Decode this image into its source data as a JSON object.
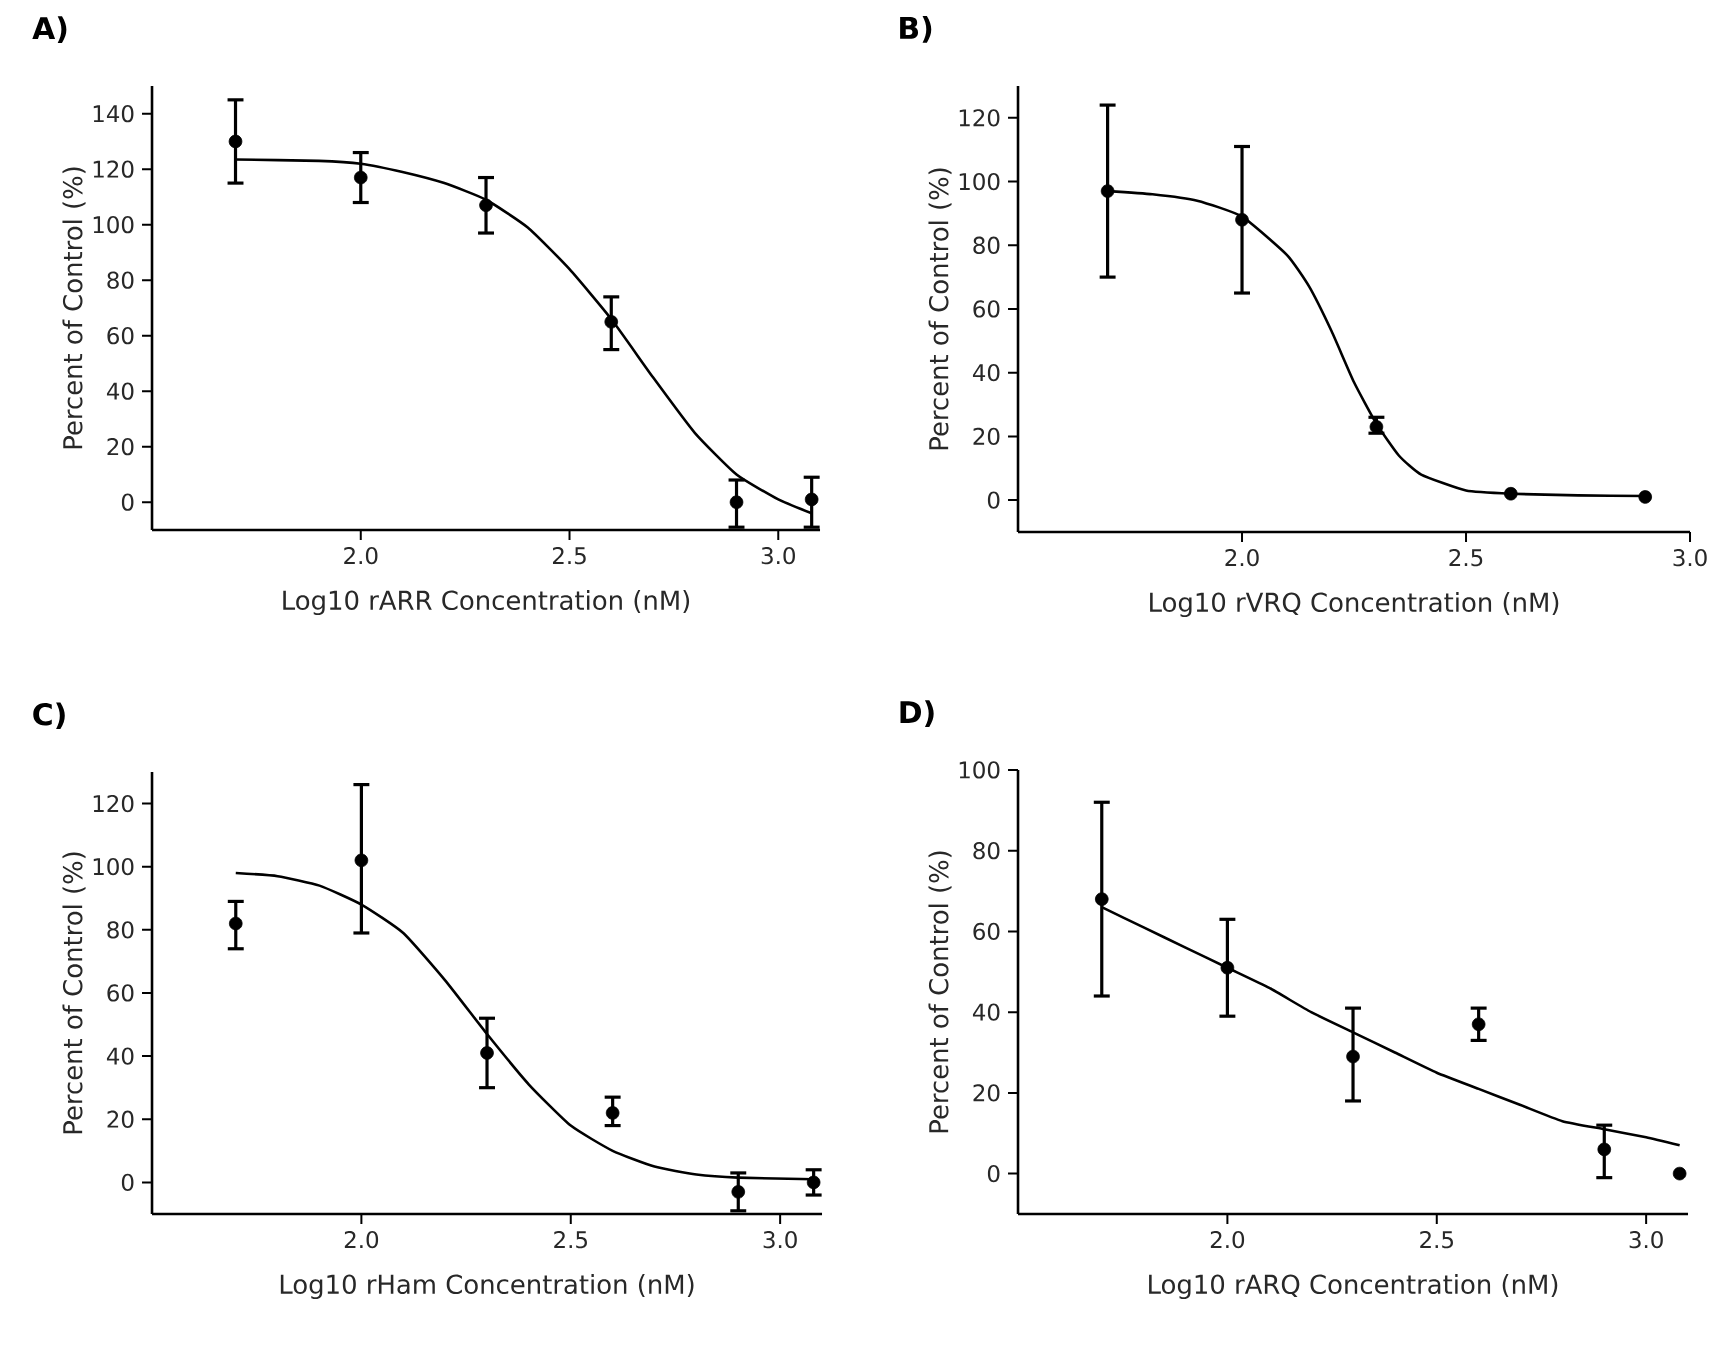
{
  "chart_data": [
    {
      "type": "scatter",
      "title": "A)",
      "xlabel": "Log10 rARR Concentration (nM)",
      "ylabel": "Percent of Control (%)",
      "xlim": [
        1.5,
        3.1
      ],
      "ylim": [
        -10,
        150
      ],
      "xticks": [
        {
          "value": 2,
          "label": "2.0"
        },
        {
          "value": 2.5,
          "label": "2.5"
        },
        {
          "value": 3,
          "label": "3.0"
        }
      ],
      "yticks": [
        0,
        20,
        40,
        60,
        80,
        100,
        120,
        140
      ],
      "grid": false,
      "series": [
        {
          "type": "scatter",
          "color": "#000000",
          "marker": "circle",
          "x": [
            1.7,
            2.0,
            2.3,
            2.6,
            2.9,
            3.08
          ],
          "values": [
            130,
            117,
            107,
            65,
            0,
            1
          ],
          "errors": [
            [
              115,
              145
            ],
            [
              108,
              126
            ],
            [
              97,
              117
            ],
            [
              55,
              74
            ],
            [
              -9,
              8
            ],
            [
              -9,
              9
            ]
          ]
        },
        {
          "type": "line",
          "color": "#000000",
          "marker": "none",
          "line_style": "solid",
          "x": [
            1.7,
            1.9,
            2.0,
            2.1,
            2.2,
            2.3,
            2.4,
            2.5,
            2.6,
            2.7,
            2.8,
            2.9,
            3.0,
            3.08
          ],
          "values": [
            123.5,
            123,
            122,
            119,
            115,
            109,
            99,
            84,
            66,
            45,
            25,
            10,
            1,
            -4
          ]
        }
      ]
    },
    {
      "type": "scatter",
      "title": "B)",
      "xlabel": "Log10 rVRQ Concentration (nM)",
      "ylabel": "Percent of Control (%)",
      "xlim": [
        1.5,
        3.0
      ],
      "ylim": [
        -10,
        130
      ],
      "xticks": [
        {
          "value": 2,
          "label": "2.0"
        },
        {
          "value": 2.5,
          "label": "2.5"
        },
        {
          "value": 3,
          "label": "3.0"
        }
      ],
      "yticks": [
        0,
        20,
        40,
        60,
        80,
        100,
        120
      ],
      "grid": false,
      "series": [
        {
          "type": "scatter",
          "color": "#000000",
          "marker": "circle",
          "x": [
            1.7,
            2.0,
            2.3,
            2.6,
            2.9
          ],
          "values": [
            97,
            88,
            23,
            2,
            1
          ],
          "errors": [
            [
              70,
              124
            ],
            [
              65,
              111
            ],
            [
              21,
              26
            ],
            null,
            null
          ]
        },
        {
          "type": "line",
          "color": "#000000",
          "marker": "none",
          "line_style": "solid",
          "x": [
            1.7,
            1.8,
            1.9,
            2.0,
            2.1,
            2.15,
            2.2,
            2.25,
            2.3,
            2.35,
            2.4,
            2.5,
            2.6,
            2.75,
            2.9
          ],
          "values": [
            97,
            96,
            94,
            89,
            77,
            67,
            53,
            37,
            24,
            14,
            8,
            3,
            2,
            1.5,
            1.3
          ]
        }
      ]
    },
    {
      "type": "scatter",
      "title": "C)",
      "xlabel": "Log10 rHam Concentration (nM)",
      "ylabel": "Percent of Control (%)",
      "xlim": [
        1.5,
        3.1
      ],
      "ylim": [
        -10,
        130
      ],
      "xticks": [
        {
          "value": 2,
          "label": "2.0"
        },
        {
          "value": 2.5,
          "label": "2.5"
        },
        {
          "value": 3,
          "label": "3.0"
        }
      ],
      "yticks": [
        0,
        20,
        40,
        60,
        80,
        100,
        120
      ],
      "grid": false,
      "series": [
        {
          "type": "scatter",
          "color": "#000000",
          "marker": "circle",
          "x": [
            1.7,
            2.0,
            2.3,
            2.6,
            2.9,
            3.08
          ],
          "values": [
            82,
            102,
            41,
            22,
            -3,
            0
          ],
          "errors": [
            [
              74,
              89
            ],
            [
              79,
              126
            ],
            [
              30,
              52
            ],
            [
              18,
              27
            ],
            [
              -9,
              3
            ],
            [
              -4,
              4
            ]
          ]
        },
        {
          "type": "line",
          "color": "#000000",
          "marker": "none",
          "line_style": "solid",
          "x": [
            1.7,
            1.8,
            1.9,
            2.0,
            2.1,
            2.2,
            2.3,
            2.4,
            2.5,
            2.6,
            2.7,
            2.8,
            2.9,
            3.08
          ],
          "values": [
            98,
            97,
            94,
            88,
            79,
            64,
            47,
            31,
            18,
            10,
            5,
            2.5,
            1.5,
            1
          ]
        }
      ]
    },
    {
      "type": "scatter",
      "title": "D)",
      "xlabel": "Log10 rARQ Concentration (nM)",
      "ylabel": "Percent of Control (%)",
      "xlim": [
        1.5,
        3.1
      ],
      "ylim": [
        -10,
        100
      ],
      "xticks": [
        {
          "value": 2,
          "label": "2.0"
        },
        {
          "value": 2.5,
          "label": "2.5"
        },
        {
          "value": 3,
          "label": "3.0"
        }
      ],
      "yticks": [
        0,
        20,
        40,
        60,
        80,
        100
      ],
      "grid": false,
      "series": [
        {
          "type": "scatter",
          "color": "#000000",
          "marker": "circle",
          "x": [
            1.7,
            2.0,
            2.3,
            2.6,
            2.9,
            3.08
          ],
          "values": [
            68,
            51,
            29,
            37,
            6,
            0
          ],
          "errors": [
            [
              44,
              92
            ],
            [
              39,
              63
            ],
            [
              18,
              41
            ],
            [
              33,
              41
            ],
            [
              -1,
              12
            ],
            null
          ]
        },
        {
          "type": "line",
          "color": "#000000",
          "marker": "none",
          "line_style": "solid",
          "x": [
            1.7,
            1.8,
            1.9,
            2.0,
            2.1,
            2.2,
            2.3,
            2.4,
            2.5,
            2.6,
            2.7,
            2.8,
            2.9,
            3.0,
            3.08
          ],
          "values": [
            66,
            61,
            56,
            51,
            46,
            40,
            35,
            30,
            25,
            21,
            17,
            13,
            11,
            9,
            7
          ]
        }
      ]
    }
  ]
}
